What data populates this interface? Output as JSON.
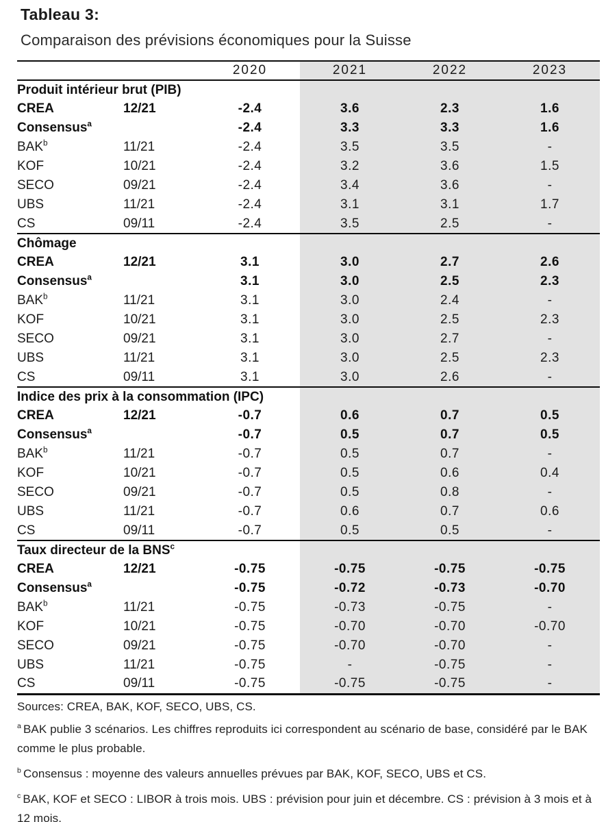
{
  "header": {
    "label": "Tableau 3:",
    "title": "Comparaison des prévisions économiques pour la Suisse"
  },
  "table": {
    "year_columns": [
      "2020",
      "2021",
      "2022",
      "2023"
    ],
    "shaded_columns": [
      "2021",
      "2022",
      "2023"
    ],
    "shade_color": "#e2e2e2",
    "sections": [
      {
        "title": "Produit intérieur brut (PIB)",
        "title_sup": "",
        "rows": [
          {
            "label": "CREA",
            "sup": "",
            "date": "12/21",
            "bold": true,
            "values": [
              "-2.4",
              "3.6",
              "2.3",
              "1.6"
            ]
          },
          {
            "label": "Consensus",
            "sup": "a",
            "date": "",
            "bold": true,
            "values": [
              "-2.4",
              "3.3",
              "3.3",
              "1.6"
            ]
          },
          {
            "label": "BAK",
            "sup": "b",
            "date": "11/21",
            "bold": false,
            "values": [
              "-2.4",
              "3.5",
              "3.5",
              "-"
            ]
          },
          {
            "label": "KOF",
            "sup": "",
            "date": "10/21",
            "bold": false,
            "values": [
              "-2.4",
              "3.2",
              "3.6",
              "1.5"
            ]
          },
          {
            "label": "SECO",
            "sup": "",
            "date": "09/21",
            "bold": false,
            "values": [
              "-2.4",
              "3.4",
              "3.6",
              "-"
            ]
          },
          {
            "label": "UBS",
            "sup": "",
            "date": "11/21",
            "bold": false,
            "values": [
              "-2.4",
              "3.1",
              "3.1",
              "1.7"
            ]
          },
          {
            "label": "CS",
            "sup": "",
            "date": "09/11",
            "bold": false,
            "values": [
              "-2.4",
              "3.5",
              "2.5",
              "-"
            ]
          }
        ]
      },
      {
        "title": "Chômage",
        "title_sup": "",
        "rows": [
          {
            "label": "CREA",
            "sup": "",
            "date": "12/21",
            "bold": true,
            "values": [
              "3.1",
              "3.0",
              "2.7",
              "2.6"
            ]
          },
          {
            "label": "Consensus",
            "sup": "a",
            "date": "",
            "bold": true,
            "values": [
              "3.1",
              "3.0",
              "2.5",
              "2.3"
            ]
          },
          {
            "label": "BAK",
            "sup": "b",
            "date": "11/21",
            "bold": false,
            "values": [
              "3.1",
              "3.0",
              "2.4",
              "-"
            ]
          },
          {
            "label": "KOF",
            "sup": "",
            "date": "10/21",
            "bold": false,
            "values": [
              "3.1",
              "3.0",
              "2.5",
              "2.3"
            ]
          },
          {
            "label": "SECO",
            "sup": "",
            "date": "09/21",
            "bold": false,
            "values": [
              "3.1",
              "3.0",
              "2.7",
              "-"
            ]
          },
          {
            "label": "UBS",
            "sup": "",
            "date": "11/21",
            "bold": false,
            "values": [
              "3.1",
              "3.0",
              "2.5",
              "2.3"
            ]
          },
          {
            "label": "CS",
            "sup": "",
            "date": "09/11",
            "bold": false,
            "values": [
              "3.1",
              "3.0",
              "2.6",
              "-"
            ]
          }
        ]
      },
      {
        "title": "Indice des prix à la consommation (IPC)",
        "title_sup": "",
        "rows": [
          {
            "label": "CREA",
            "sup": "",
            "date": "12/21",
            "bold": true,
            "values": [
              "-0.7",
              "0.6",
              "0.7",
              "0.5"
            ]
          },
          {
            "label": "Consensus",
            "sup": "a",
            "date": "",
            "bold": true,
            "values": [
              "-0.7",
              "0.5",
              "0.7",
              "0.5"
            ]
          },
          {
            "label": "BAK",
            "sup": "b",
            "date": "11/21",
            "bold": false,
            "values": [
              "-0.7",
              "0.5",
              "0.7",
              "-"
            ]
          },
          {
            "label": "KOF",
            "sup": "",
            "date": "10/21",
            "bold": false,
            "values": [
              "-0.7",
              "0.5",
              "0.6",
              "0.4"
            ]
          },
          {
            "label": "SECO",
            "sup": "",
            "date": "09/21",
            "bold": false,
            "values": [
              "-0.7",
              "0.5",
              "0.8",
              "-"
            ]
          },
          {
            "label": "UBS",
            "sup": "",
            "date": "11/21",
            "bold": false,
            "values": [
              "-0.7",
              "0.6",
              "0.7",
              "0.6"
            ]
          },
          {
            "label": "CS",
            "sup": "",
            "date": "09/11",
            "bold": false,
            "values": [
              "-0.7",
              "0.5",
              "0.5",
              "-"
            ]
          }
        ]
      },
      {
        "title": "Taux directeur de la BNS",
        "title_sup": "c",
        "rows": [
          {
            "label": "CREA",
            "sup": "",
            "date": "12/21",
            "bold": true,
            "values": [
              "-0.75",
              "-0.75",
              "-0.75",
              "-0.75"
            ]
          },
          {
            "label": "Consensus",
            "sup": "a",
            "date": "",
            "bold": true,
            "values": [
              "-0.75",
              "-0.72",
              "-0.73",
              "-0.70"
            ]
          },
          {
            "label": "BAK",
            "sup": "b",
            "date": "11/21",
            "bold": false,
            "values": [
              "-0.75",
              "-0.73",
              "-0.75",
              "-"
            ]
          },
          {
            "label": "KOF",
            "sup": "",
            "date": "10/21",
            "bold": false,
            "values": [
              "-0.75",
              "-0.70",
              "-0.70",
              "-0.70"
            ]
          },
          {
            "label": "SECO",
            "sup": "",
            "date": "09/21",
            "bold": false,
            "values": [
              "-0.75",
              "-0.70",
              "-0.70",
              "-"
            ]
          },
          {
            "label": "UBS",
            "sup": "",
            "date": "11/21",
            "bold": false,
            "values": [
              "-0.75",
              "-",
              "-0.75",
              "-"
            ]
          },
          {
            "label": "CS",
            "sup": "",
            "date": "09/11",
            "bold": false,
            "values": [
              "-0.75",
              "-0.75",
              "-0.75",
              "-"
            ]
          }
        ]
      }
    ]
  },
  "footnotes": {
    "sources": "Sources: CREA, BAK, KOF, SECO, UBS, CS.",
    "items": [
      {
        "marker": "a",
        "text": "BAK publie 3 scénarios. Les chiffres reproduits ici correspondent au scénario de base, considéré par le BAK comme le plus probable."
      },
      {
        "marker": "b",
        "text": "Consensus : moyenne des valeurs annuelles prévues par BAK, KOF, SECO, UBS et CS."
      },
      {
        "marker": "c",
        "text": "BAK, KOF et SECO : LIBOR à trois mois. UBS : prévision pour juin et décembre. CS : prévision à 3 mois et à 12 mois."
      }
    ]
  }
}
